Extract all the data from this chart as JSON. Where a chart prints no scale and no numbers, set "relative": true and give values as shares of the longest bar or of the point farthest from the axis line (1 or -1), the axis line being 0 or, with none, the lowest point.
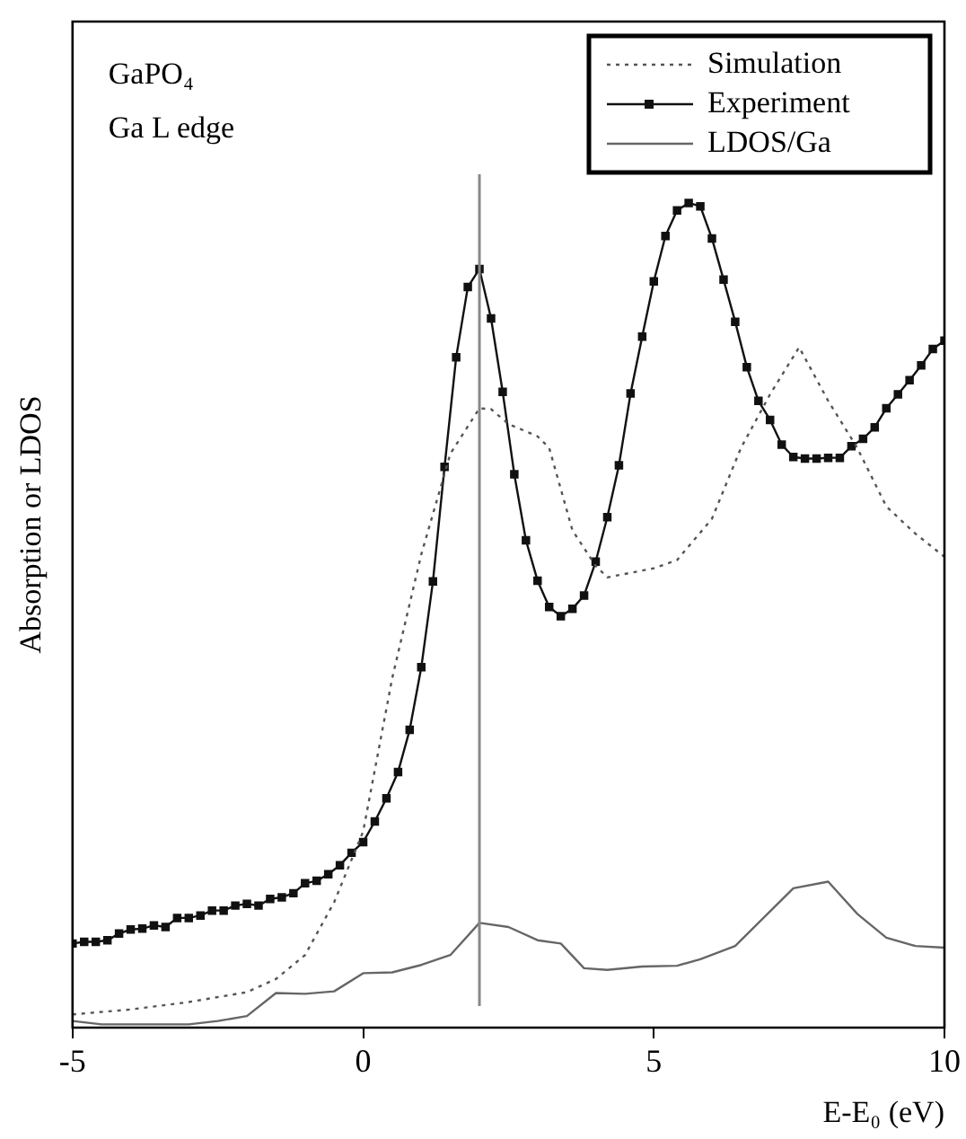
{
  "chart_data": {
    "type": "line",
    "relative": true,
    "xlabel": "E-E₀ (eV)",
    "ylabel": "Absorption or LDOS",
    "xlim": [
      -5,
      10
    ],
    "xticks": [
      -5,
      0,
      5,
      10
    ],
    "tick_labels": "x",
    "grid": false,
    "legend": "top right",
    "annotations": [
      "GaPO₄",
      "Ga L edge"
    ],
    "ref_lines": [
      {
        "axis": "x",
        "value": 2,
        "color": "#888888"
      }
    ],
    "series": [
      {
        "name": "Simulation",
        "color": "#555555",
        "line_style": "dotted",
        "marker": "none",
        "x": [
          -5,
          -4,
          -3,
          -2,
          -1.5,
          -1,
          -0.5,
          0,
          0.5,
          1,
          1.5,
          2,
          2.2,
          2.5,
          3,
          3.2,
          3.6,
          4,
          4.2,
          5,
          5.4,
          6,
          6.5,
          7,
          7.5,
          8,
          8.5,
          9,
          9.5,
          10
        ],
        "values": [
          0.016,
          0.022,
          0.031,
          0.043,
          0.059,
          0.088,
          0.152,
          0.238,
          0.424,
          0.574,
          0.696,
          0.751,
          0.75,
          0.732,
          0.717,
          0.703,
          0.603,
          0.56,
          0.546,
          0.557,
          0.567,
          0.617,
          0.703,
          0.768,
          0.825,
          0.76,
          0.703,
          0.632,
          0.599,
          0.571
        ]
      },
      {
        "name": "Experiment",
        "color": "#111111",
        "line_style": "solid",
        "marker": "square",
        "x": [
          -5,
          -4.8,
          -4.6,
          -4.4,
          -4.2,
          -4,
          -3.8,
          -3.6,
          -3.4,
          -3.2,
          -3,
          -2.8,
          -2.6,
          -2.4,
          -2.2,
          -2,
          -1.8,
          -1.6,
          -1.4,
          -1.2,
          -1,
          -0.8,
          -0.6,
          -0.4,
          -0.2,
          0,
          0.2,
          0.4,
          0.6,
          0.8,
          1,
          1.2,
          1.4,
          1.6,
          1.8,
          2,
          2.2,
          2.4,
          2.6,
          2.8,
          3,
          3.2,
          3.4,
          3.6,
          3.8,
          4,
          4.2,
          4.4,
          4.6,
          4.8,
          5,
          5.2,
          5.4,
          5.6,
          5.8,
          6,
          6.2,
          6.4,
          6.6,
          6.8,
          7,
          7.2,
          7.4,
          7.6,
          7.8,
          8,
          8.2,
          8.4,
          8.6,
          8.8,
          9,
          9.2,
          9.4,
          9.6,
          9.8,
          10
        ],
        "values": [
          0.102,
          0.104,
          0.104,
          0.106,
          0.114,
          0.119,
          0.12,
          0.124,
          0.122,
          0.133,
          0.133,
          0.136,
          0.142,
          0.142,
          0.148,
          0.15,
          0.148,
          0.156,
          0.158,
          0.163,
          0.175,
          0.178,
          0.186,
          0.197,
          0.212,
          0.225,
          0.25,
          0.278,
          0.31,
          0.361,
          0.437,
          0.541,
          0.68,
          0.813,
          0.898,
          0.92,
          0.86,
          0.771,
          0.671,
          0.591,
          0.542,
          0.51,
          0.499,
          0.508,
          0.524,
          0.565,
          0.619,
          0.682,
          0.769,
          0.838,
          0.905,
          0.96,
          0.991,
          1,
          0.996,
          0.957,
          0.907,
          0.856,
          0.801,
          0.76,
          0.737,
          0.707,
          0.692,
          0.69,
          0.69,
          0.691,
          0.691,
          0.705,
          0.714,
          0.728,
          0.751,
          0.768,
          0.785,
          0.803,
          0.823,
          0.833
        ]
      },
      {
        "name": "LDOS/Ga",
        "color": "#666666",
        "line_style": "solid",
        "marker": "none",
        "x": [
          -5,
          -4.5,
          -4,
          -3,
          -2.5,
          -2,
          -1.5,
          -1,
          -0.5,
          0,
          0.5,
          1,
          1.5,
          2,
          2.5,
          3,
          3.4,
          3.8,
          4.2,
          4.8,
          5.4,
          5.8,
          6.4,
          7.4,
          8,
          8.5,
          9,
          9.5,
          10
        ],
        "values": [
          0.008,
          0.004,
          0.004,
          0.004,
          0.008,
          0.014,
          0.042,
          0.041,
          0.044,
          0.066,
          0.067,
          0.076,
          0.088,
          0.127,
          0.122,
          0.106,
          0.102,
          0.072,
          0.07,
          0.074,
          0.075,
          0.083,
          0.099,
          0.169,
          0.177,
          0.138,
          0.109,
          0.099,
          0.097
        ]
      }
    ]
  }
}
